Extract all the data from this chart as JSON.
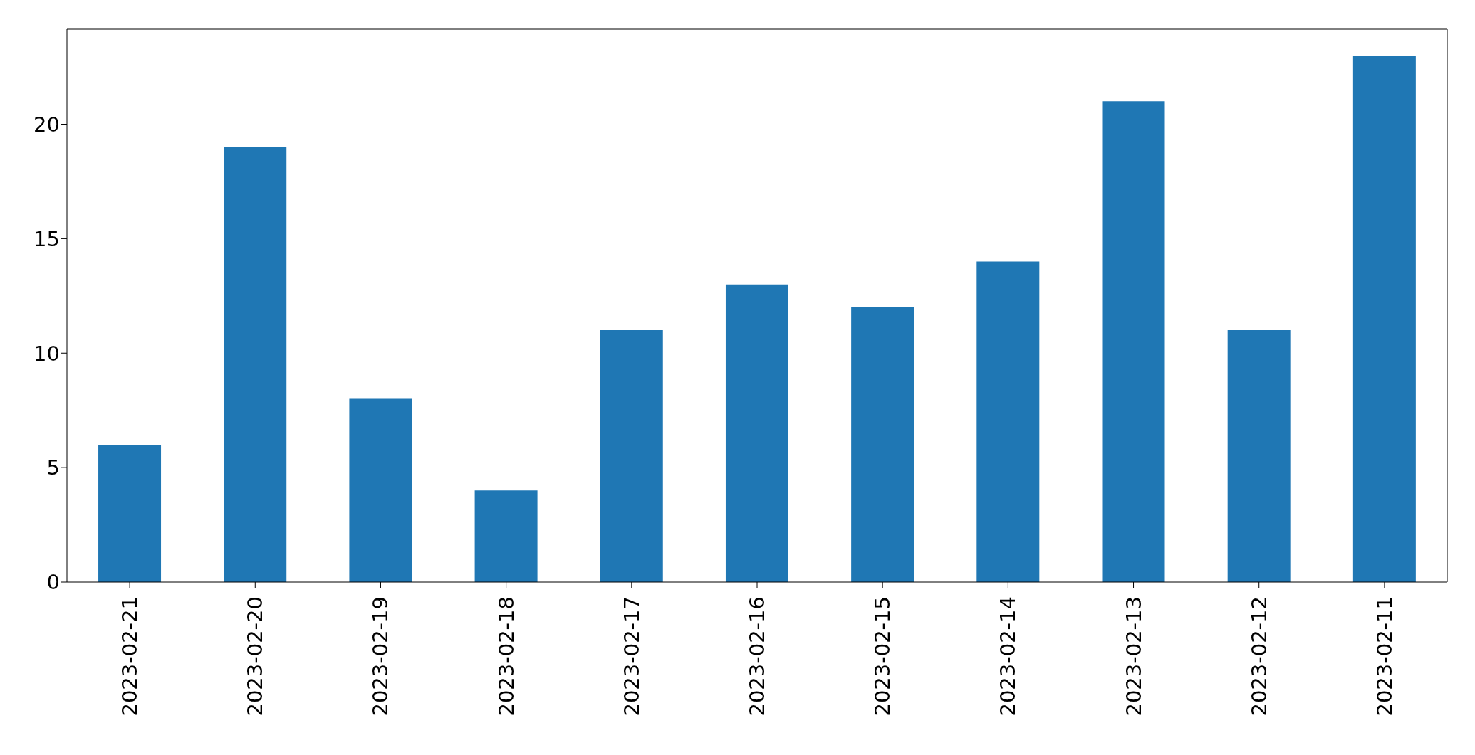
{
  "chart_data": {
    "type": "bar",
    "categories": [
      "2023-02-21",
      "2023-02-20",
      "2023-02-19",
      "2023-02-18",
      "2023-02-17",
      "2023-02-16",
      "2023-02-15",
      "2023-02-14",
      "2023-02-13",
      "2023-02-12",
      "2023-02-11"
    ],
    "values": [
      6,
      19,
      8,
      4,
      11,
      13,
      12,
      14,
      21,
      11,
      23
    ],
    "color": "#1f77b4",
    "ylim": [
      0,
      24.15
    ],
    "yticks": [
      0,
      5,
      10,
      15,
      20
    ],
    "grid": false,
    "legend": false
  }
}
